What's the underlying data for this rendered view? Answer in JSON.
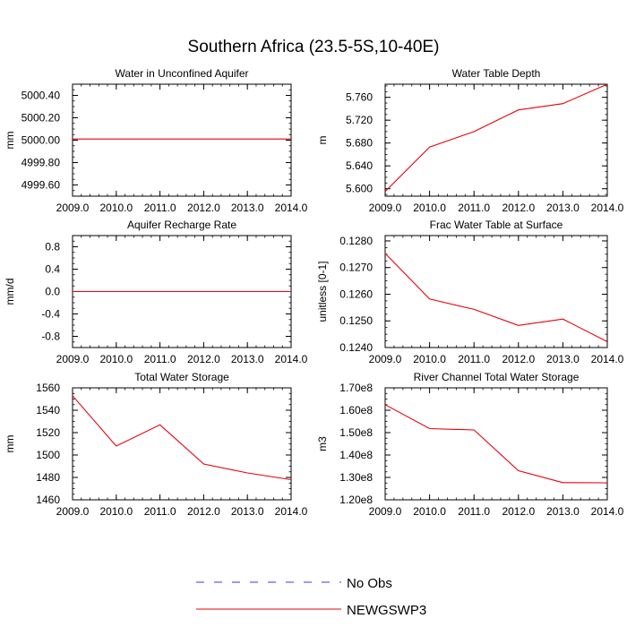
{
  "figure_title": "Southern Africa (23.5-5S,10-40E)",
  "legend": {
    "items": [
      {
        "label": "No Obs",
        "color": "#3b3bd6",
        "dash": true
      },
      {
        "label": "NEWGSWP3",
        "color": "#e8000b",
        "dash": false
      }
    ]
  },
  "chart_data": [
    {
      "type": "line",
      "title": "Water in Unconfined Aquifer",
      "ylabel": "mm",
      "x": [
        2009,
        2010,
        2011,
        2012,
        2013,
        2014
      ],
      "xticks": [
        "2009.0",
        "2010.0",
        "2011.0",
        "2012.0",
        "2013.0",
        "2014.0"
      ],
      "xlim": [
        2009,
        2014
      ],
      "ylim": [
        4999.5,
        5000.5
      ],
      "yticks": [
        4999.6,
        4999.8,
        5000.0,
        5000.2,
        5000.4
      ],
      "yticklabels": [
        "4999.60",
        "4999.80",
        "5000.00",
        "5000.20",
        "5000.40"
      ],
      "series": [
        {
          "name": "NEWGSWP3",
          "color": "#e8000b",
          "values": [
            5000.01,
            5000.01,
            5000.01,
            5000.01,
            5000.01,
            5000.01
          ]
        }
      ]
    },
    {
      "type": "line",
      "title": "Water Table Depth",
      "ylabel": "m",
      "x": [
        2009,
        2010,
        2011,
        2012,
        2013,
        2014
      ],
      "xticks": [
        "2009.0",
        "2010.0",
        "2011.0",
        "2012.0",
        "2013.0",
        "2014.0"
      ],
      "xlim": [
        2009,
        2014
      ],
      "ylim": [
        5.587,
        5.783
      ],
      "yticks": [
        5.6,
        5.64,
        5.68,
        5.72,
        5.76
      ],
      "yticklabels": [
        "5.600",
        "5.640",
        "5.680",
        "5.720",
        "5.760"
      ],
      "series": [
        {
          "name": "NEWGSWP3",
          "color": "#e8000b",
          "values": [
            5.595,
            5.673,
            5.7,
            5.738,
            5.749,
            5.783
          ]
        }
      ]
    },
    {
      "type": "line",
      "title": "Aquifer Recharge Rate",
      "ylabel": "mm/d",
      "x": [
        2009,
        2010,
        2011,
        2012,
        2013,
        2014
      ],
      "xticks": [
        "2009.0",
        "2010.0",
        "2011.0",
        "2012.0",
        "2013.0",
        "2014.0"
      ],
      "xlim": [
        2009,
        2014
      ],
      "ylim": [
        -1.0,
        1.0
      ],
      "yticks": [
        -0.8,
        -0.4,
        0.0,
        0.4,
        0.8
      ],
      "yticklabels": [
        "-0.8",
        "-0.4",
        "0.0",
        "0.4",
        "0.8"
      ],
      "series": [
        {
          "name": "NEWGSWP3",
          "color": "#e8000b",
          "values": [
            0,
            0,
            0,
            0,
            0,
            0
          ]
        }
      ]
    },
    {
      "type": "line",
      "title": "Frac Water Table at Surface",
      "ylabel": "unitless [0-1]",
      "x": [
        2009,
        2010,
        2011,
        2012,
        2013,
        2014
      ],
      "xticks": [
        "2009.0",
        "2010.0",
        "2011.0",
        "2012.0",
        "2013.0",
        "2014.0"
      ],
      "xlim": [
        2009,
        2014
      ],
      "ylim": [
        0.124,
        0.1282
      ],
      "yticks": [
        0.124,
        0.125,
        0.126,
        0.127,
        0.128
      ],
      "yticklabels": [
        "0.1240",
        "0.1250",
        "0.1260",
        "0.1270",
        "0.1280"
      ],
      "series": [
        {
          "name": "NEWGSWP3",
          "color": "#e8000b",
          "values": [
            0.12753,
            0.12582,
            0.12543,
            0.12483,
            0.12507,
            0.12422
          ]
        }
      ]
    },
    {
      "type": "line",
      "title": "Total Water Storage",
      "ylabel": "mm",
      "x": [
        2009,
        2010,
        2011,
        2012,
        2013,
        2014
      ],
      "xticks": [
        "2009.0",
        "2010.0",
        "2011.0",
        "2012.0",
        "2013.0",
        "2014.0"
      ],
      "xlim": [
        2009,
        2014
      ],
      "ylim": [
        1460,
        1560
      ],
      "yticks": [
        1460,
        1480,
        1500,
        1520,
        1540,
        1560
      ],
      "yticklabels": [
        "1460",
        "1480",
        "1500",
        "1520",
        "1540",
        "1560"
      ],
      "series": [
        {
          "name": "NEWGSWP3",
          "color": "#e8000b",
          "values": [
            1553,
            1508,
            1527,
            1492,
            1484,
            1478
          ]
        }
      ]
    },
    {
      "type": "line",
      "title": "River Channel Total Water Storage",
      "ylabel": "m3",
      "x": [
        2009,
        2010,
        2011,
        2012,
        2013,
        2014
      ],
      "xticks": [
        "2009.0",
        "2010.0",
        "2011.0",
        "2012.0",
        "2013.0",
        "2014.0"
      ],
      "xlim": [
        2009,
        2014
      ],
      "ylim": [
        120000000,
        170000000
      ],
      "yticks": [
        120000000,
        130000000,
        140000000,
        150000000,
        160000000,
        170000000
      ],
      "yticklabels": [
        "1.20e8",
        "1.30e8",
        "1.40e8",
        "1.50e8",
        "1.60e8",
        "1.70e8"
      ],
      "series": [
        {
          "name": "NEWGSWP3",
          "color": "#e8000b",
          "values": [
            162500000,
            151800000,
            151200000,
            133000000,
            127700000,
            127600000
          ]
        }
      ]
    }
  ]
}
